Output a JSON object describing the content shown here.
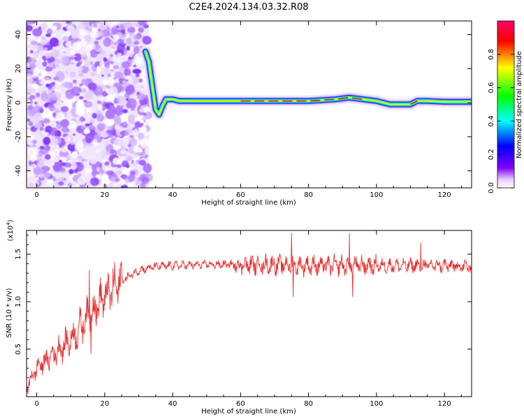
{
  "title": "C2E4.2024.134.03.32.R08",
  "chart_data": [
    {
      "type": "heatmap",
      "xlabel": "Height of straight line (km)",
      "ylabel": "Frequency (Hz)",
      "xlim": [
        -3,
        128
      ],
      "ylim": [
        -50,
        48
      ],
      "xticks": [
        0,
        20,
        40,
        60,
        80,
        100,
        120
      ],
      "yticks": [
        -40,
        -20,
        0,
        20,
        40
      ],
      "colorbar": {
        "label": "Normalized spectral amplitude",
        "range": [
          0,
          1
        ],
        "ticks": [
          "0.0",
          "0.2",
          "0.4",
          "0.6",
          "0.8"
        ],
        "colormap": [
          "#ffffff",
          "#e6ccff",
          "#8000ff",
          "#0000ff",
          "#00ffff",
          "#00ff00",
          "#ffff00",
          "#ff0000",
          "#ff0066"
        ]
      },
      "noise_region_km": [
        -3,
        33
      ],
      "signal_track": [
        {
          "x": 32,
          "y": 30
        },
        {
          "x": 33,
          "y": 24
        },
        {
          "x": 34,
          "y": 10
        },
        {
          "x": 35,
          "y": -4
        },
        {
          "x": 36,
          "y": -7
        },
        {
          "x": 37,
          "y": -2
        },
        {
          "x": 38,
          "y": 2
        },
        {
          "x": 40,
          "y": 2
        },
        {
          "x": 42,
          "y": 1
        },
        {
          "x": 50,
          "y": 1
        },
        {
          "x": 60,
          "y": 1
        },
        {
          "x": 70,
          "y": 1
        },
        {
          "x": 80,
          "y": 1
        },
        {
          "x": 88,
          "y": 2
        },
        {
          "x": 92,
          "y": 3
        },
        {
          "x": 96,
          "y": 2
        },
        {
          "x": 100,
          "y": 1
        },
        {
          "x": 104,
          "y": -1
        },
        {
          "x": 110,
          "y": -1
        },
        {
          "x": 112,
          "y": 1
        },
        {
          "x": 115,
          "y": 1
        },
        {
          "x": 120,
          "y": 0.5
        },
        {
          "x": 128,
          "y": 0.5
        }
      ]
    },
    {
      "type": "line",
      "xlabel": "Height of straight line (km)",
      "ylabel": "SNR (10 * v/v)",
      "yscale_label": "(x10",
      "yscale_exp": "4",
      "xlim": [
        -3,
        128
      ],
      "ylim": [
        0.0,
        1.75
      ],
      "xticks": [
        0,
        20,
        40,
        60,
        80,
        100,
        120
      ],
      "yticks": [
        0.5,
        1.0,
        1.5
      ],
      "ytick_labels": [
        "0.5",
        "1.0",
        "1.5"
      ],
      "color": "#e83030",
      "trend": [
        {
          "x": -3,
          "y": 0.1
        },
        {
          "x": 0,
          "y": 0.3
        },
        {
          "x": 5,
          "y": 0.45
        },
        {
          "x": 10,
          "y": 0.6
        },
        {
          "x": 15,
          "y": 0.85
        },
        {
          "x": 20,
          "y": 1.05
        },
        {
          "x": 25,
          "y": 1.22
        },
        {
          "x": 30,
          "y": 1.33
        },
        {
          "x": 35,
          "y": 1.37
        },
        {
          "x": 40,
          "y": 1.38
        },
        {
          "x": 50,
          "y": 1.39
        },
        {
          "x": 60,
          "y": 1.39
        },
        {
          "x": 70,
          "y": 1.39
        },
        {
          "x": 80,
          "y": 1.38
        },
        {
          "x": 90,
          "y": 1.38
        },
        {
          "x": 100,
          "y": 1.38
        },
        {
          "x": 110,
          "y": 1.38
        },
        {
          "x": 120,
          "y": 1.38
        },
        {
          "x": 128,
          "y": 1.37
        }
      ],
      "spikes": [
        {
          "x": 12,
          "y": 0.5
        },
        {
          "x": 15.5,
          "y": 1.33
        },
        {
          "x": 16,
          "y": 0.45
        },
        {
          "x": 75,
          "y": 1.72
        },
        {
          "x": 75.5,
          "y": 1.05
        },
        {
          "x": 92,
          "y": 1.72
        },
        {
          "x": 93,
          "y": 1.05
        },
        {
          "x": 113,
          "y": 1.62
        }
      ]
    }
  ]
}
